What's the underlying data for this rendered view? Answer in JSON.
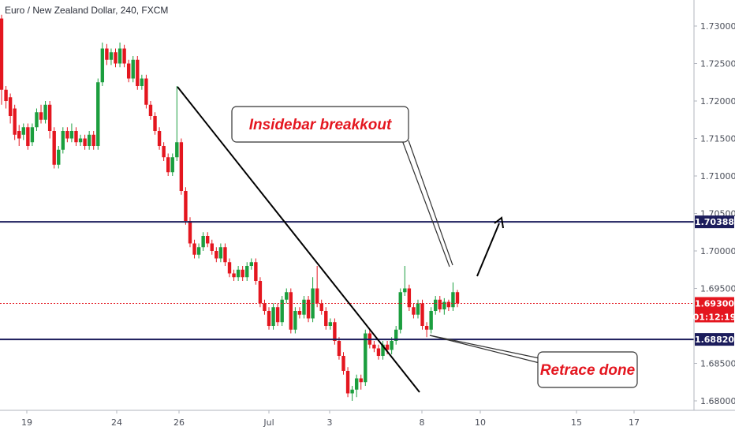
{
  "header": {
    "title": "Euro / New Zealand Dollar, 240, FXCM"
  },
  "chart_data": {
    "type": "candlestick",
    "title": "Euro / New Zealand Dollar, 240, FXCM",
    "y_ticks": [
      "1.73000",
      "1.72500",
      "1.72000",
      "1.71500",
      "1.71000",
      "1.70500",
      "1.70000",
      "1.69500",
      "1.68500",
      "1.68000"
    ],
    "ylim": [
      1.677,
      1.734
    ],
    "x_ticks": [
      "19",
      "24",
      "26",
      "Jul",
      "3",
      "8",
      "10",
      "15",
      "17"
    ],
    "grid": false,
    "levels": [
      {
        "name": "resistance",
        "value": 1.70388,
        "label": "1.70388",
        "color": "#1c1d5c"
      },
      {
        "name": "support",
        "value": 1.6882,
        "label": "1.68820",
        "color": "#1c1d5c"
      }
    ],
    "current_price": {
      "value": 1.693,
      "label": "1.69300",
      "countdown": "01:12:19",
      "color": "#e4161f"
    },
    "annotations": [
      {
        "name": "insidebar-callout",
        "text": "Insidebar breakkout"
      },
      {
        "name": "retrace-callout",
        "text": "Retrace done"
      }
    ],
    "colors": {
      "up": "#26a69a",
      "up_fill": "#1b9e3e",
      "down": "#e4161f",
      "line": "#1c1d5c"
    },
    "candles": [
      [
        1.731,
        1.7215
      ],
      [
        1.7215,
        1.72
      ],
      [
        1.7205,
        1.718
      ],
      [
        1.719,
        1.7155
      ],
      [
        1.716,
        1.715
      ],
      [
        1.7155,
        1.7165
      ],
      [
        1.7165,
        1.714
      ],
      [
        1.7145,
        1.7165
      ],
      [
        1.7165,
        1.7185
      ],
      [
        1.7185,
        1.7175
      ],
      [
        1.7175,
        1.7195
      ],
      [
        1.7195,
        1.716
      ],
      [
        1.716,
        1.7115
      ],
      [
        1.7115,
        1.7135
      ],
      [
        1.7135,
        1.716
      ],
      [
        1.716,
        1.715
      ],
      [
        1.715,
        1.716
      ],
      [
        1.716,
        1.7145
      ],
      [
        1.7145,
        1.715
      ],
      [
        1.715,
        1.714
      ],
      [
        1.714,
        1.7155
      ],
      [
        1.7155,
        1.714
      ],
      [
        1.714,
        1.7225
      ],
      [
        1.7225,
        1.727
      ],
      [
        1.727,
        1.7255
      ],
      [
        1.7255,
        1.7265
      ],
      [
        1.7265,
        1.725
      ],
      [
        1.725,
        1.727
      ],
      [
        1.727,
        1.725
      ],
      [
        1.725,
        1.723
      ],
      [
        1.723,
        1.7255
      ],
      [
        1.7255,
        1.722
      ],
      [
        1.722,
        1.723
      ],
      [
        1.723,
        1.7195
      ],
      [
        1.7195,
        1.718
      ],
      [
        1.718,
        1.716
      ],
      [
        1.716,
        1.714
      ],
      [
        1.714,
        1.7125
      ],
      [
        1.7125,
        1.7105
      ],
      [
        1.7105,
        1.7125
      ],
      [
        1.7125,
        1.7145
      ],
      [
        1.7145,
        1.708
      ],
      [
        1.708,
        1.704
      ],
      [
        1.704,
        1.701
      ],
      [
        1.701,
        1.6995
      ],
      [
        1.6995,
        1.7005
      ],
      [
        1.7005,
        1.702
      ],
      [
        1.702,
        1.701
      ],
      [
        1.701,
        1.7
      ],
      [
        1.7,
        1.699
      ],
      [
        1.699,
        1.7005
      ],
      [
        1.7005,
        1.6985
      ],
      [
        1.6985,
        1.697
      ],
      [
        1.697,
        1.6965
      ],
      [
        1.6965,
        1.6975
      ],
      [
        1.6975,
        1.6965
      ],
      [
        1.6965,
        1.698
      ],
      [
        1.698,
        1.6985
      ],
      [
        1.6985,
        1.696
      ],
      [
        1.696,
        1.693
      ],
      [
        1.693,
        1.692
      ],
      [
        1.692,
        1.69
      ],
      [
        1.69,
        1.6925
      ],
      [
        1.6925,
        1.6905
      ],
      [
        1.6905,
        1.6935
      ],
      [
        1.6935,
        1.6945
      ],
      [
        1.6945,
        1.6895
      ],
      [
        1.6895,
        1.692
      ],
      [
        1.692,
        1.6915
      ],
      [
        1.6915,
        1.6935
      ],
      [
        1.6935,
        1.691
      ],
      [
        1.691,
        1.695
      ],
      [
        1.695,
        1.693
      ],
      [
        1.693,
        1.692
      ],
      [
        1.692,
        1.69
      ],
      [
        1.69,
        1.6905
      ],
      [
        1.6905,
        1.688
      ],
      [
        1.688,
        1.686
      ],
      [
        1.686,
        1.684
      ],
      [
        1.684,
        1.681
      ],
      [
        1.681,
        1.6815
      ],
      [
        1.6815,
        1.683
      ],
      [
        1.683,
        1.6825
      ],
      [
        1.6825,
        1.689
      ],
      [
        1.689,
        1.6875
      ],
      [
        1.6875,
        1.687
      ],
      [
        1.687,
        1.686
      ],
      [
        1.686,
        1.6875
      ],
      [
        1.6875,
        1.6868
      ],
      [
        1.6868,
        1.688
      ],
      [
        1.688,
        1.6895
      ],
      [
        1.6895,
        1.6945
      ],
      [
        1.6945,
        1.695
      ],
      [
        1.695,
        1.6925
      ],
      [
        1.6925,
        1.6915
      ],
      [
        1.6915,
        1.693
      ],
      [
        1.693,
        1.69
      ],
      [
        1.69,
        1.6895
      ],
      [
        1.6895,
        1.692
      ],
      [
        1.692,
        1.6935
      ],
      [
        1.6935,
        1.6922
      ],
      [
        1.6922,
        1.6932
      ],
      [
        1.6932,
        1.6925
      ],
      [
        1.6925,
        1.6945
      ],
      [
        1.6945,
        1.693
      ]
    ],
    "wicks": [
      [
        1.7315,
        1.7195
      ],
      [
        1.722,
        1.719
      ],
      [
        1.721,
        1.717
      ],
      [
        1.7195,
        1.7148
      ],
      [
        1.7168,
        1.714
      ],
      [
        1.717,
        1.7148
      ],
      [
        1.717,
        1.7135
      ],
      [
        1.717,
        1.714
      ],
      [
        1.719,
        1.716
      ],
      [
        1.7195,
        1.717
      ],
      [
        1.72,
        1.717
      ],
      [
        1.72,
        1.715
      ],
      [
        1.7165,
        1.711
      ],
      [
        1.714,
        1.711
      ],
      [
        1.7165,
        1.713
      ],
      [
        1.7165,
        1.7145
      ],
      [
        1.717,
        1.7145
      ],
      [
        1.7165,
        1.714
      ],
      [
        1.7155,
        1.714
      ],
      [
        1.7155,
        1.7135
      ],
      [
        1.716,
        1.7135
      ],
      [
        1.716,
        1.7135
      ],
      [
        1.723,
        1.7135
      ],
      [
        1.7278,
        1.722
      ],
      [
        1.7276,
        1.7248
      ],
      [
        1.727,
        1.7248
      ],
      [
        1.727,
        1.7245
      ],
      [
        1.7278,
        1.7245
      ],
      [
        1.7275,
        1.7245
      ],
      [
        1.7255,
        1.7225
      ],
      [
        1.726,
        1.7225
      ],
      [
        1.726,
        1.7215
      ],
      [
        1.7235,
        1.7215
      ],
      [
        1.7235,
        1.719
      ],
      [
        1.72,
        1.7175
      ],
      [
        1.7185,
        1.7155
      ],
      [
        1.7165,
        1.7135
      ],
      [
        1.7145,
        1.712
      ],
      [
        1.713,
        1.71
      ],
      [
        1.713,
        1.71
      ],
      [
        1.722,
        1.712
      ],
      [
        1.715,
        1.7075
      ],
      [
        1.7085,
        1.7035
      ],
      [
        1.7045,
        1.7005
      ],
      [
        1.7015,
        1.699
      ],
      [
        1.701,
        1.699
      ],
      [
        1.7025,
        1.7
      ],
      [
        1.7025,
        1.7005
      ],
      [
        1.7015,
        1.6995
      ],
      [
        1.7005,
        1.6985
      ],
      [
        1.701,
        1.6985
      ],
      [
        1.701,
        1.698
      ],
      [
        1.699,
        1.6965
      ],
      [
        1.6975,
        1.696
      ],
      [
        1.698,
        1.696
      ],
      [
        1.698,
        1.696
      ],
      [
        1.6985,
        1.696
      ],
      [
        1.699,
        1.6975
      ],
      [
        1.699,
        1.6955
      ],
      [
        1.6965,
        1.6925
      ],
      [
        1.6935,
        1.6915
      ],
      [
        1.6925,
        1.6895
      ],
      [
        1.693,
        1.6895
      ],
      [
        1.693,
        1.69
      ],
      [
        1.694,
        1.69
      ],
      [
        1.695,
        1.693
      ],
      [
        1.695,
        1.689
      ],
      [
        1.6925,
        1.689
      ],
      [
        1.6925,
        1.691
      ],
      [
        1.694,
        1.691
      ],
      [
        1.694,
        1.6905
      ],
      [
        1.6965,
        1.6905
      ],
      [
        1.698,
        1.6925
      ],
      [
        1.6935,
        1.6915
      ],
      [
        1.6925,
        1.6895
      ],
      [
        1.691,
        1.6895
      ],
      [
        1.691,
        1.6875
      ],
      [
        1.6885,
        1.6855
      ],
      [
        1.6865,
        1.6835
      ],
      [
        1.6845,
        1.6805
      ],
      [
        1.682,
        1.68
      ],
      [
        1.6835,
        1.6805
      ],
      [
        1.6835,
        1.6815
      ],
      [
        1.6895,
        1.682
      ],
      [
        1.6895,
        1.687
      ],
      [
        1.688,
        1.6865
      ],
      [
        1.6875,
        1.6855
      ],
      [
        1.688,
        1.6855
      ],
      [
        1.688,
        1.6862
      ],
      [
        1.6885,
        1.6862
      ],
      [
        1.69,
        1.6875
      ],
      [
        1.695,
        1.689
      ],
      [
        1.698,
        1.694
      ],
      [
        1.6955,
        1.692
      ],
      [
        1.693,
        1.691
      ],
      [
        1.6935,
        1.691
      ],
      [
        1.6935,
        1.6895
      ],
      [
        1.6905,
        1.6885
      ],
      [
        1.6925,
        1.689
      ],
      [
        1.694,
        1.6915
      ],
      [
        1.694,
        1.6918
      ],
      [
        1.6937,
        1.6915
      ],
      [
        1.6935,
        1.692
      ],
      [
        1.6958,
        1.692
      ],
      [
        1.6948,
        1.6925
      ]
    ]
  }
}
